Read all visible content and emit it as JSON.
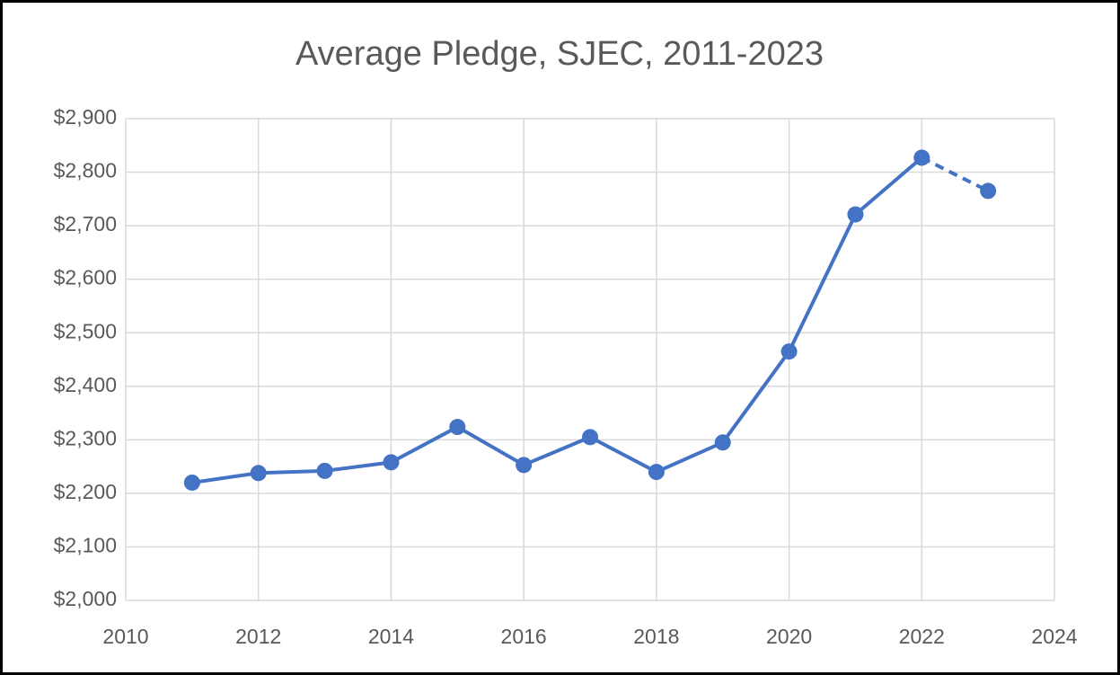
{
  "chart_data": {
    "type": "line",
    "title": "Average Pledge, SJEC, 2011-2023",
    "x": [
      2011,
      2012,
      2013,
      2014,
      2015,
      2016,
      2017,
      2018,
      2019,
      2020,
      2021,
      2022,
      2023
    ],
    "series": [
      {
        "color": "#4472c4",
        "values": [
          2220,
          2238,
          2242,
          2258,
          2324,
          2253,
          2305,
          2240,
          2295,
          2465,
          2721,
          2827,
          2765
        ]
      }
    ],
    "dashed_last_segment": true,
    "xlim": [
      2010,
      2024
    ],
    "xticks": [
      2010,
      2012,
      2014,
      2016,
      2018,
      2020,
      2022,
      2024
    ],
    "ylim": [
      2000,
      2900
    ],
    "yticks": [
      {
        "value": 2000,
        "label": "$2,000"
      },
      {
        "value": 2100,
        "label": "$2,100"
      },
      {
        "value": 2200,
        "label": "$2,200"
      },
      {
        "value": 2300,
        "label": "$2,300"
      },
      {
        "value": 2400,
        "label": "$2,400"
      },
      {
        "value": 2500,
        "label": "$2,500"
      },
      {
        "value": 2600,
        "label": "$2,600"
      },
      {
        "value": 2700,
        "label": "$2,700"
      },
      {
        "value": 2800,
        "label": "$2,800"
      },
      {
        "value": 2900,
        "label": "$2,900"
      }
    ],
    "grid": true
  }
}
